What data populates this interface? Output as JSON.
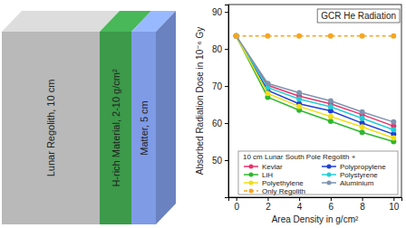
{
  "chart_data": {
    "type": "line",
    "title": "GCR He Radiation",
    "x_label": "Area Density in g/cm²",
    "y_label": "Absorbed Radiation Dose in 10⁻⁶ Gy",
    "legend_title": "10 cm Lunar South Pole Regolith +",
    "legend": "lower right",
    "grid": false,
    "x": [
      0,
      2,
      4,
      6,
      8,
      10
    ],
    "xlim": [
      -0.5,
      10.5
    ],
    "xticks": [
      0,
      2,
      4,
      6,
      8,
      10
    ],
    "ylim": [
      40,
      92
    ],
    "yticks": [
      50,
      60,
      70,
      80,
      90
    ],
    "series": [
      {
        "name": "Kevlar",
        "color": "#e8336b",
        "marker": "circle",
        "line_style": "solid",
        "values": [
          83.5,
          70.2,
          67.3,
          65.2,
          62.3,
          59.2
        ]
      },
      {
        "name": "Polypropylene",
        "color": "#1f3fd6",
        "marker": "circle",
        "line_style": "solid",
        "values": [
          83.5,
          68.8,
          65.2,
          63.3,
          60.0,
          57.0
        ]
      },
      {
        "name": "LiH",
        "color": "#2db82d",
        "marker": "circle",
        "line_style": "solid",
        "values": [
          83.5,
          67.0,
          63.5,
          60.5,
          57.5,
          55.0
        ]
      },
      {
        "name": "Polystyrene",
        "color": "#22cfd6",
        "marker": "circle",
        "line_style": "solid",
        "values": [
          83.5,
          69.6,
          66.5,
          64.4,
          61.3,
          58.2
        ]
      },
      {
        "name": "Polyethylene",
        "color": "#f0de1a",
        "marker": "circle",
        "line_style": "solid",
        "values": [
          83.5,
          68.0,
          64.5,
          61.8,
          59.0,
          56.0
        ]
      },
      {
        "name": "Aluminium",
        "color": "#7f93b0",
        "marker": "circle",
        "line_style": "solid",
        "values": [
          83.5,
          70.7,
          68.2,
          66.0,
          63.0,
          60.3
        ]
      },
      {
        "name": "Only Regolith",
        "color": "#f5a623",
        "marker": "circle",
        "line_style": "dashed",
        "values": [
          83.5,
          83.5,
          83.5,
          83.5,
          83.5,
          83.5
        ]
      }
    ]
  },
  "diagram": {
    "layers": [
      {
        "label": "Lunar Regolith, 10 cm",
        "color": "#b9b9b9"
      },
      {
        "label": "H-rich Material, 2-10 g/cm²",
        "color": "#3c9a4a"
      },
      {
        "label": "Matter, 5 cm",
        "color": "#7f9be6"
      }
    ]
  }
}
